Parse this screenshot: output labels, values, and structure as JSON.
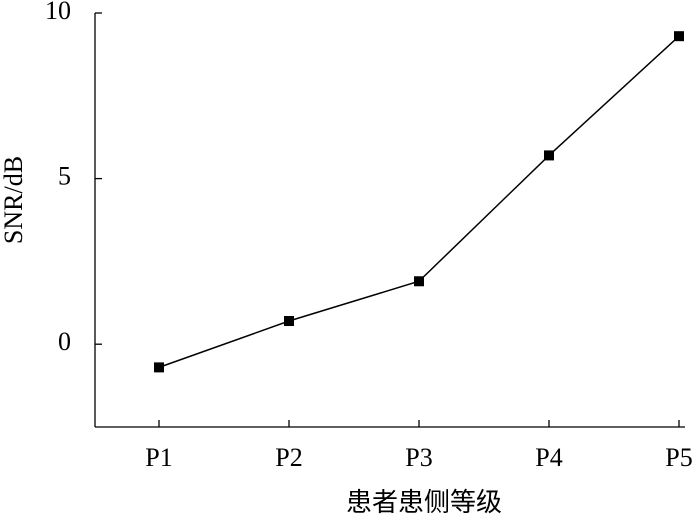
{
  "chart_data": {
    "type": "line",
    "x_label": "患者患侧等级",
    "y_label": "SNR/dB",
    "categories": [
      "P1",
      "P2",
      "P3",
      "P4",
      "P5"
    ],
    "series": [
      {
        "name": "SNR",
        "color": "#000000",
        "values": [
          -0.7,
          0.7,
          1.9,
          5.7,
          9.3
        ]
      }
    ],
    "ylim": [
      -2.5,
      10
    ],
    "yticks": [
      0,
      5,
      10
    ],
    "grid": false
  }
}
